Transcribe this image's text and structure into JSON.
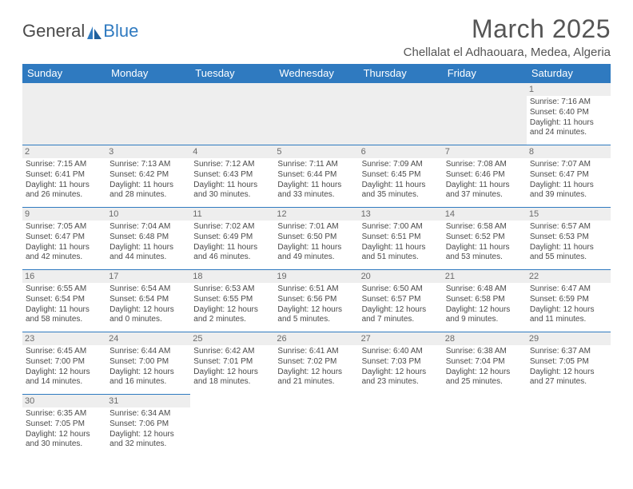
{
  "logo": {
    "text1": "General",
    "text2": "Blue"
  },
  "title": "March 2025",
  "location": "Chellalat el Adhaouara, Medea, Algeria",
  "colors": {
    "accent": "#2f7ac0",
    "header_text": "#ffffff",
    "grey_bg": "#eeeeee",
    "text": "#4a4a4a"
  },
  "weekdays": [
    "Sunday",
    "Monday",
    "Tuesday",
    "Wednesday",
    "Thursday",
    "Friday",
    "Saturday"
  ],
  "weeks": [
    [
      null,
      null,
      null,
      null,
      null,
      null,
      {
        "n": "1",
        "sr": "Sunrise: 7:16 AM",
        "ss": "Sunset: 6:40 PM",
        "dl": "Daylight: 11 hours and 24 minutes."
      }
    ],
    [
      {
        "n": "2",
        "sr": "Sunrise: 7:15 AM",
        "ss": "Sunset: 6:41 PM",
        "dl": "Daylight: 11 hours and 26 minutes."
      },
      {
        "n": "3",
        "sr": "Sunrise: 7:13 AM",
        "ss": "Sunset: 6:42 PM",
        "dl": "Daylight: 11 hours and 28 minutes."
      },
      {
        "n": "4",
        "sr": "Sunrise: 7:12 AM",
        "ss": "Sunset: 6:43 PM",
        "dl": "Daylight: 11 hours and 30 minutes."
      },
      {
        "n": "5",
        "sr": "Sunrise: 7:11 AM",
        "ss": "Sunset: 6:44 PM",
        "dl": "Daylight: 11 hours and 33 minutes."
      },
      {
        "n": "6",
        "sr": "Sunrise: 7:09 AM",
        "ss": "Sunset: 6:45 PM",
        "dl": "Daylight: 11 hours and 35 minutes."
      },
      {
        "n": "7",
        "sr": "Sunrise: 7:08 AM",
        "ss": "Sunset: 6:46 PM",
        "dl": "Daylight: 11 hours and 37 minutes."
      },
      {
        "n": "8",
        "sr": "Sunrise: 7:07 AM",
        "ss": "Sunset: 6:47 PM",
        "dl": "Daylight: 11 hours and 39 minutes."
      }
    ],
    [
      {
        "n": "9",
        "sr": "Sunrise: 7:05 AM",
        "ss": "Sunset: 6:47 PM",
        "dl": "Daylight: 11 hours and 42 minutes."
      },
      {
        "n": "10",
        "sr": "Sunrise: 7:04 AM",
        "ss": "Sunset: 6:48 PM",
        "dl": "Daylight: 11 hours and 44 minutes."
      },
      {
        "n": "11",
        "sr": "Sunrise: 7:02 AM",
        "ss": "Sunset: 6:49 PM",
        "dl": "Daylight: 11 hours and 46 minutes."
      },
      {
        "n": "12",
        "sr": "Sunrise: 7:01 AM",
        "ss": "Sunset: 6:50 PM",
        "dl": "Daylight: 11 hours and 49 minutes."
      },
      {
        "n": "13",
        "sr": "Sunrise: 7:00 AM",
        "ss": "Sunset: 6:51 PM",
        "dl": "Daylight: 11 hours and 51 minutes."
      },
      {
        "n": "14",
        "sr": "Sunrise: 6:58 AM",
        "ss": "Sunset: 6:52 PM",
        "dl": "Daylight: 11 hours and 53 minutes."
      },
      {
        "n": "15",
        "sr": "Sunrise: 6:57 AM",
        "ss": "Sunset: 6:53 PM",
        "dl": "Daylight: 11 hours and 55 minutes."
      }
    ],
    [
      {
        "n": "16",
        "sr": "Sunrise: 6:55 AM",
        "ss": "Sunset: 6:54 PM",
        "dl": "Daylight: 11 hours and 58 minutes."
      },
      {
        "n": "17",
        "sr": "Sunrise: 6:54 AM",
        "ss": "Sunset: 6:54 PM",
        "dl": "Daylight: 12 hours and 0 minutes."
      },
      {
        "n": "18",
        "sr": "Sunrise: 6:53 AM",
        "ss": "Sunset: 6:55 PM",
        "dl": "Daylight: 12 hours and 2 minutes."
      },
      {
        "n": "19",
        "sr": "Sunrise: 6:51 AM",
        "ss": "Sunset: 6:56 PM",
        "dl": "Daylight: 12 hours and 5 minutes."
      },
      {
        "n": "20",
        "sr": "Sunrise: 6:50 AM",
        "ss": "Sunset: 6:57 PM",
        "dl": "Daylight: 12 hours and 7 minutes."
      },
      {
        "n": "21",
        "sr": "Sunrise: 6:48 AM",
        "ss": "Sunset: 6:58 PM",
        "dl": "Daylight: 12 hours and 9 minutes."
      },
      {
        "n": "22",
        "sr": "Sunrise: 6:47 AM",
        "ss": "Sunset: 6:59 PM",
        "dl": "Daylight: 12 hours and 11 minutes."
      }
    ],
    [
      {
        "n": "23",
        "sr": "Sunrise: 6:45 AM",
        "ss": "Sunset: 7:00 PM",
        "dl": "Daylight: 12 hours and 14 minutes."
      },
      {
        "n": "24",
        "sr": "Sunrise: 6:44 AM",
        "ss": "Sunset: 7:00 PM",
        "dl": "Daylight: 12 hours and 16 minutes."
      },
      {
        "n": "25",
        "sr": "Sunrise: 6:42 AM",
        "ss": "Sunset: 7:01 PM",
        "dl": "Daylight: 12 hours and 18 minutes."
      },
      {
        "n": "26",
        "sr": "Sunrise: 6:41 AM",
        "ss": "Sunset: 7:02 PM",
        "dl": "Daylight: 12 hours and 21 minutes."
      },
      {
        "n": "27",
        "sr": "Sunrise: 6:40 AM",
        "ss": "Sunset: 7:03 PM",
        "dl": "Daylight: 12 hours and 23 minutes."
      },
      {
        "n": "28",
        "sr": "Sunrise: 6:38 AM",
        "ss": "Sunset: 7:04 PM",
        "dl": "Daylight: 12 hours and 25 minutes."
      },
      {
        "n": "29",
        "sr": "Sunrise: 6:37 AM",
        "ss": "Sunset: 7:05 PM",
        "dl": "Daylight: 12 hours and 27 minutes."
      }
    ],
    [
      {
        "n": "30",
        "sr": "Sunrise: 6:35 AM",
        "ss": "Sunset: 7:05 PM",
        "dl": "Daylight: 12 hours and 30 minutes."
      },
      {
        "n": "31",
        "sr": "Sunrise: 6:34 AM",
        "ss": "Sunset: 7:06 PM",
        "dl": "Daylight: 12 hours and 32 minutes."
      },
      null,
      null,
      null,
      null,
      null
    ]
  ]
}
